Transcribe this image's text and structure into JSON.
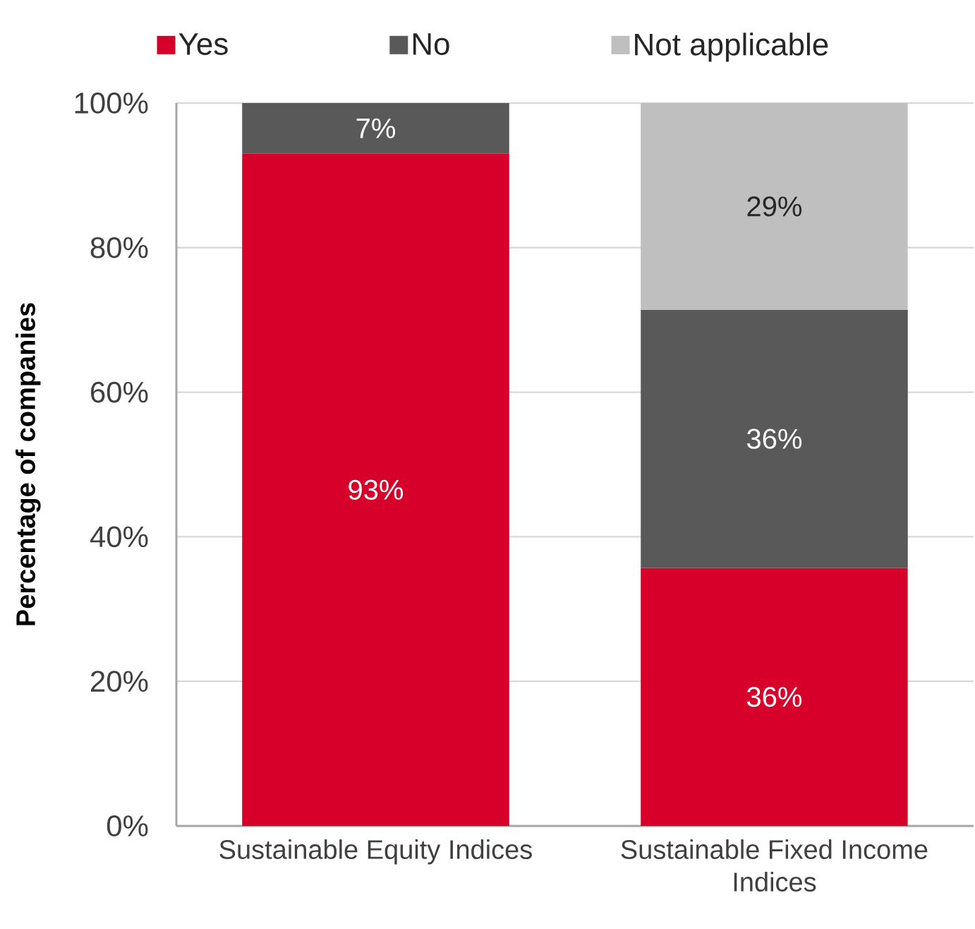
{
  "chart_data": {
    "type": "bar",
    "stacked": true,
    "ylabel": "Percentage of companies",
    "categories": [
      "Sustainable Equity Indices",
      "Sustainable Fixed Income Indices"
    ],
    "series": [
      {
        "name": "Yes",
        "color": "#d6002a",
        "values": [
          93,
          35.7
        ],
        "value_labels": [
          "93%",
          "36%"
        ]
      },
      {
        "name": "No",
        "color": "#595959",
        "values": [
          7,
          35.7
        ],
        "value_labels": [
          "7%",
          "36%"
        ]
      },
      {
        "name": "Not applicable",
        "color": "#bfbfbf",
        "values": [
          null,
          28.6
        ],
        "value_labels": [
          null,
          "29%"
        ]
      }
    ],
    "ylim": [
      0,
      100
    ],
    "yticks": [
      {
        "value": 0,
        "label": "0%"
      },
      {
        "value": 20,
        "label": "20%"
      },
      {
        "value": 40,
        "label": "40%"
      },
      {
        "value": 60,
        "label": "60%"
      },
      {
        "value": 80,
        "label": "80%"
      },
      {
        "value": 100,
        "label": "100%"
      }
    ],
    "grid": "y",
    "legend": "top"
  }
}
